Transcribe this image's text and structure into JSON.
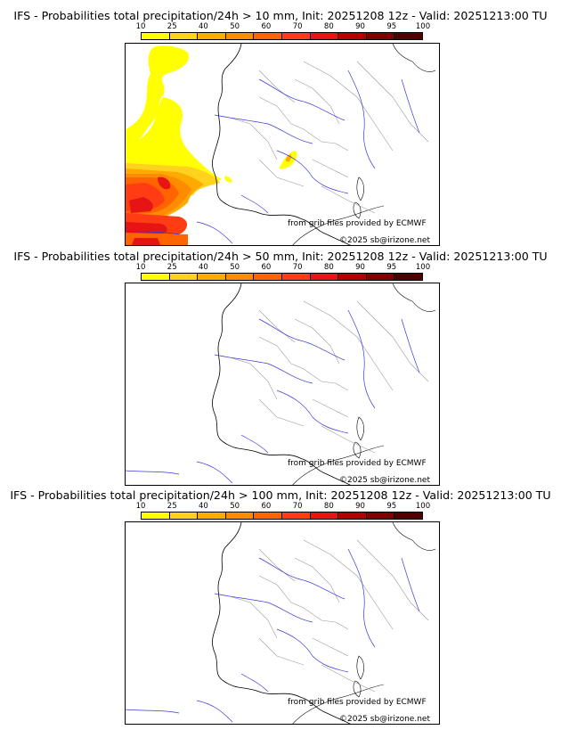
{
  "colorbar": {
    "ticks": [
      "10",
      "25",
      "40",
      "50",
      "60",
      "70",
      "80",
      "90",
      "95",
      "100"
    ],
    "colors": [
      "#ffff00",
      "#ffd21e",
      "#ffaa00",
      "#ff8c00",
      "#ff6400",
      "#ff3c14",
      "#e61414",
      "#b40000",
      "#820000",
      "#500000"
    ]
  },
  "panels": [
    {
      "title": "IFS - Probabilities total precipitation/24h > 10 mm, Init: 20251208 12z - Valid: 20251213:00 TU",
      "credit_source": "from grib files provided by ECMWF",
      "credit_copyright": "©2025 sb@irizone.net"
    },
    {
      "title": "IFS - Probabilities total precipitation/24h > 50 mm, Init: 20251208 12z - Valid: 20251213:00 TU",
      "credit_source": "from grib files provided by ECMWF",
      "credit_copyright": "©2025 sb@irizone.net"
    },
    {
      "title": "IFS - Probabilities total precipitation/24h > 100 mm, Init: 20251208 12z - Valid: 20251213:00 TU",
      "credit_source": "from grib files provided by ECMWF",
      "credit_copyright": "©2025 sb@irizone.net"
    }
  ]
}
